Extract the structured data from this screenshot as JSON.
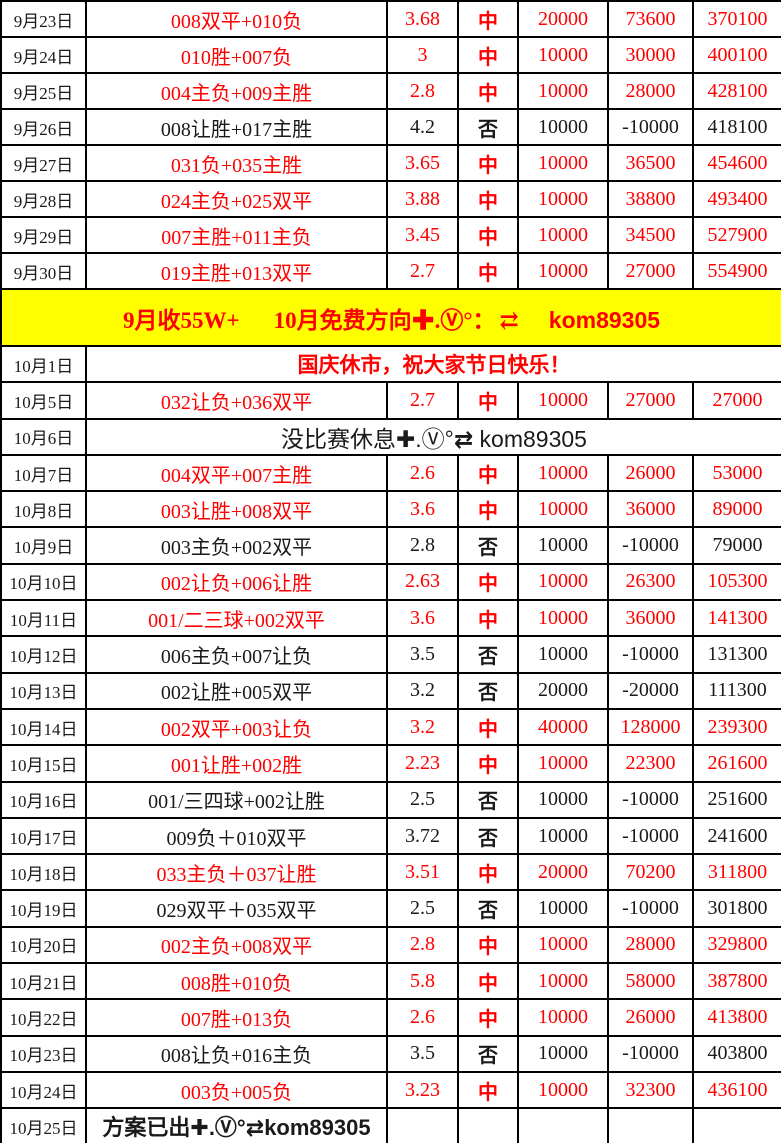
{
  "colors": {
    "win_text": "#ff0000",
    "loss_text": "#1a1a1a",
    "banner_background": "#ffff00",
    "banner_text": "#ff0000",
    "error_marker_green": "#1e8f1e",
    "grid_border": "#000000"
  },
  "icons": {
    "swap_arrows_glyph": "⇄",
    "error_marker": "corner-triangle"
  },
  "rows": [
    {
      "type": "bet",
      "date": "9月23日",
      "plan": "008双平+010负",
      "odds": "3.68",
      "result": "中",
      "stake": "20000",
      "profit": "73600",
      "total": "370100",
      "win": true,
      "marker": false
    },
    {
      "type": "bet",
      "date": "9月24日",
      "plan": "010胜+007负",
      "odds": "3",
      "result": "中",
      "stake": "10000",
      "profit": "30000",
      "total": "400100",
      "win": true,
      "marker": false
    },
    {
      "type": "bet",
      "date": "9月25日",
      "plan": "004主负+009主胜",
      "odds": "2.8",
      "result": "中",
      "stake": "10000",
      "profit": "28000",
      "total": "428100",
      "win": true,
      "marker": false
    },
    {
      "type": "bet",
      "date": "9月26日",
      "plan": "008让胜+017主胜",
      "odds": "4.2",
      "result": "否",
      "stake": "10000",
      "profit": "-10000",
      "total": "418100",
      "win": false,
      "marker": true
    },
    {
      "type": "bet",
      "date": "9月27日",
      "plan": "031负+035主胜",
      "odds": "3.65",
      "result": "中",
      "stake": "10000",
      "profit": "36500",
      "total": "454600",
      "win": true,
      "marker": false
    },
    {
      "type": "bet",
      "date": "9月28日",
      "plan": "024主负+025双平",
      "odds": "3.88",
      "result": "中",
      "stake": "10000",
      "profit": "38800",
      "total": "493400",
      "win": true,
      "marker": false
    },
    {
      "type": "bet",
      "date": "9月29日",
      "plan": "007主胜+011主负",
      "odds": "3.45",
      "result": "中",
      "stake": "10000",
      "profit": "34500",
      "total": "527900",
      "win": true,
      "marker": false
    },
    {
      "type": "bet",
      "date": "9月30日",
      "plan": "019主胜+013双平",
      "odds": "2.7",
      "result": "中",
      "stake": "10000",
      "profit": "27000",
      "total": "554900",
      "win": true,
      "marker": false
    },
    {
      "type": "banner",
      "pre": "9月收55W+",
      "mid": "10月免费方向✚.Ⓥ°：",
      "icon_glyph": "⇄",
      "handle": "kom89305"
    },
    {
      "type": "message",
      "date": "10月1日",
      "pre": "国庆休市，祝大家节日快乐！",
      "post": "",
      "icon": false,
      "color": "red",
      "scope": "full"
    },
    {
      "type": "bet",
      "date": "10月5日",
      "plan": "032让负+036双平",
      "odds": "2.7",
      "result": "中",
      "stake": "10000",
      "profit": "27000",
      "total": "27000",
      "win": true,
      "marker": false
    },
    {
      "type": "message",
      "date": "10月6日",
      "pre": "没比赛休息✚.Ⓥ°",
      "post": " kom89305",
      "icon": true,
      "color": "black",
      "scope": "full"
    },
    {
      "type": "bet",
      "date": "10月7日",
      "plan": "004双平+007主胜",
      "odds": "2.6",
      "result": "中",
      "stake": "10000",
      "profit": "26000",
      "total": "53000",
      "win": true,
      "marker": false
    },
    {
      "type": "bet",
      "date": "10月8日",
      "plan": "003让胜+008双平",
      "odds": "3.6",
      "result": "中",
      "stake": "10000",
      "profit": "36000",
      "total": "89000",
      "win": true,
      "marker": false
    },
    {
      "type": "bet",
      "date": "10月9日",
      "plan": "003主负+002双平",
      "odds": "2.8",
      "result": "否",
      "stake": "10000",
      "profit": "-10000",
      "total": "79000",
      "win": false,
      "marker": true
    },
    {
      "type": "bet",
      "date": "10月10日",
      "plan": "002让负+006让胜",
      "odds": "2.63",
      "result": "中",
      "stake": "10000",
      "profit": "26300",
      "total": "105300",
      "win": true,
      "marker": false
    },
    {
      "type": "bet",
      "date": "10月11日",
      "plan": "001/二三球+002双平",
      "odds": "3.6",
      "result": "中",
      "stake": "10000",
      "profit": "36000",
      "total": "141300",
      "win": true,
      "marker": false
    },
    {
      "type": "bet",
      "date": "10月12日",
      "plan": "006主负+007让负",
      "odds": "3.5",
      "result": "否",
      "stake": "10000",
      "profit": "-10000",
      "total": "131300",
      "win": false,
      "marker": false
    },
    {
      "type": "bet",
      "date": "10月13日",
      "plan": "002让胜+005双平",
      "odds": "3.2",
      "result": "否",
      "stake": "20000",
      "profit": "-20000",
      "total": "111300",
      "win": false,
      "marker": false
    },
    {
      "type": "bet",
      "date": "10月14日",
      "plan": "002双平+003让负",
      "odds": "3.2",
      "result": "中",
      "stake": "40000",
      "profit": "128000",
      "total": "239300",
      "win": true,
      "marker": false
    },
    {
      "type": "bet",
      "date": "10月15日",
      "plan": "001让胜+002胜",
      "odds": "2.23",
      "result": "中",
      "stake": "10000",
      "profit": "22300",
      "total": "261600",
      "win": true,
      "marker": false
    },
    {
      "type": "bet",
      "date": "10月16日",
      "plan": "001/三四球+002让胜",
      "odds": "2.5",
      "result": "否",
      "stake": "10000",
      "profit": "-10000",
      "total": "251600",
      "win": false,
      "marker": false
    },
    {
      "type": "bet",
      "date": "10月17日",
      "plan": "009负＋010双平",
      "odds": "3.72",
      "result": "否",
      "stake": "10000",
      "profit": "-10000",
      "total": "241600",
      "win": false,
      "marker": false
    },
    {
      "type": "bet",
      "date": "10月18日",
      "plan": "033主负＋037让胜",
      "odds": "3.51",
      "result": "中",
      "stake": "20000",
      "profit": "70200",
      "total": "311800",
      "win": true,
      "marker": true
    },
    {
      "type": "bet",
      "date": "10月19日",
      "plan": "029双平＋035双平",
      "odds": "2.5",
      "result": "否",
      "stake": "10000",
      "profit": "-10000",
      "total": "301800",
      "win": false,
      "marker": true
    },
    {
      "type": "bet",
      "date": "10月20日",
      "plan": "002主负+008双平",
      "odds": "2.8",
      "result": "中",
      "stake": "10000",
      "profit": "28000",
      "total": "329800",
      "win": true,
      "marker": false
    },
    {
      "type": "bet",
      "date": "10月21日",
      "plan": "008胜+010负",
      "odds": "5.8",
      "result": "中",
      "stake": "10000",
      "profit": "58000",
      "total": "387800",
      "win": true,
      "marker": false
    },
    {
      "type": "bet",
      "date": "10月22日",
      "plan": "007胜+013负",
      "odds": "2.6",
      "result": "中",
      "stake": "10000",
      "profit": "26000",
      "total": "413800",
      "win": true,
      "marker": false
    },
    {
      "type": "bet",
      "date": "10月23日",
      "plan": "008让负+016主负",
      "odds": "3.5",
      "result": "否",
      "stake": "10000",
      "profit": "-10000",
      "total": "403800",
      "win": false,
      "marker": false,
      "marker_fix": true
    },
    {
      "type": "bet",
      "date": "10月24日",
      "plan": "003负+005负",
      "odds": "3.23",
      "result": "中",
      "stake": "10000",
      "profit": "32300",
      "total": "436100",
      "win": true,
      "marker": false
    },
    {
      "type": "message",
      "date": "10月25日",
      "pre": "方案已出✚.Ⓥ°",
      "post": "kom89305",
      "icon": true,
      "color": "black",
      "scope": "col2"
    }
  ]
}
